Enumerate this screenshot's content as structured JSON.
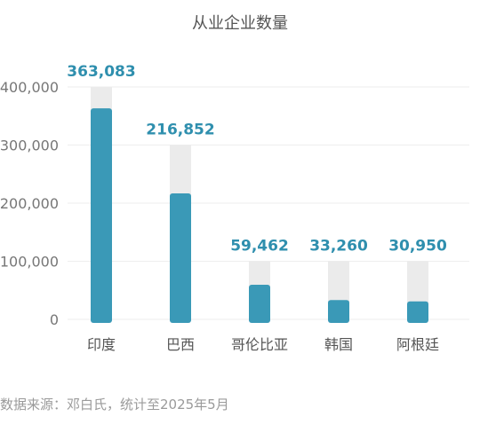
{
  "chart_data": {
    "type": "bar",
    "title": "从业企业数量",
    "categories": [
      "印度",
      "巴西",
      "哥伦比亚",
      "韩国",
      "阿根廷"
    ],
    "values": [
      363083,
      216852,
      59462,
      33260,
      30950
    ],
    "value_labels": [
      "363,083",
      "216,852",
      "59,462",
      "33,260",
      "30,950"
    ],
    "background_bar_values": [
      400000,
      300000,
      100000,
      100000,
      100000
    ],
    "ylim": [
      0,
      400000
    ],
    "yticks": [
      0,
      100000,
      200000,
      300000,
      400000
    ],
    "ytick_labels": [
      "0",
      "100,000",
      "200,000",
      "300,000",
      "400,000"
    ],
    "grid": true,
    "xlabel": "",
    "ylabel": "",
    "source": "数据来源：邓白氏，统计至2025年5月",
    "colors": {
      "bar": "#3a99b7",
      "background_bar": "#ebebeb",
      "value_label": "#2f8fae",
      "tick_label": "#777777",
      "category_label": "#555555",
      "grid": "#eeeeee"
    }
  }
}
